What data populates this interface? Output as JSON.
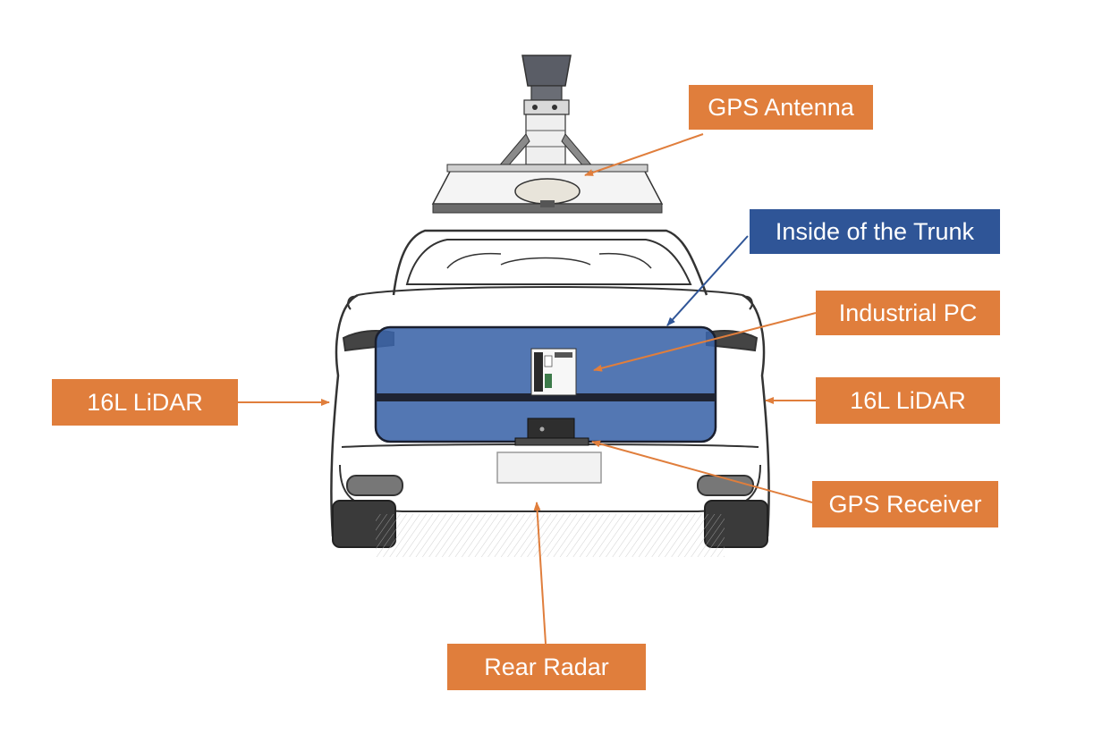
{
  "labels": {
    "gps_antenna": "GPS Antenna",
    "inside_trunk": "Inside of the Trunk",
    "industrial_pc": "Industrial PC",
    "lidar_left": "16L LiDAR",
    "lidar_right": "16L LiDAR",
    "gps_receiver": "GPS Receiver",
    "rear_radar": "Rear Radar"
  },
  "colors": {
    "callout_orange": "#e07e3c",
    "callout_blue": "#2f5597",
    "trunk_overlay": "#3b64a8",
    "trunk_border": "#1a1f2e",
    "sketch_line": "#333333"
  }
}
